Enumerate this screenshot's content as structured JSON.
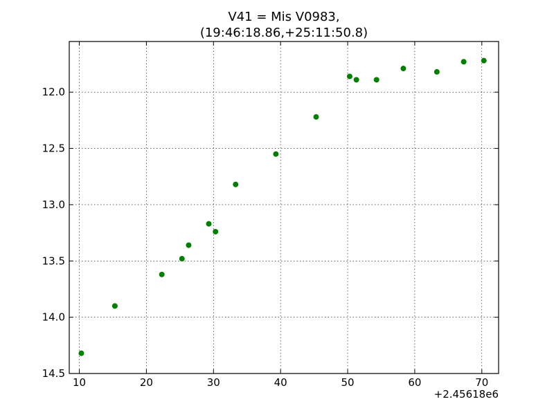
{
  "chart_data": {
    "type": "scatter",
    "title_lines": [
      "V41 = Mis V0983,",
      "(19:46:18.86,+25:11:50.8)"
    ],
    "xlabel": "",
    "ylabel": "",
    "x_offset_label": "+2.45618e6",
    "xlim": [
      8.5,
      72.5
    ],
    "ylim": [
      14.5,
      11.55
    ],
    "y_inverted": true,
    "x_ticks": [
      10,
      20,
      30,
      40,
      50,
      60,
      70
    ],
    "y_ticks": [
      12.0,
      12.5,
      13.0,
      13.5,
      14.0,
      14.5
    ],
    "x_tick_labels": [
      "10",
      "20",
      "30",
      "40",
      "50",
      "60",
      "70"
    ],
    "y_tick_labels": [
      "12.0",
      "12.5",
      "13.0",
      "13.5",
      "14.0",
      "14.5"
    ],
    "grid": true,
    "marker_color": "#007f00",
    "x": [
      10.3,
      15.3,
      22.3,
      25.3,
      26.3,
      29.3,
      30.3,
      33.3,
      39.3,
      45.3,
      50.3,
      51.3,
      54.3,
      58.3,
      63.3,
      67.3,
      70.3
    ],
    "y": [
      14.32,
      13.9,
      13.62,
      13.48,
      13.36,
      13.17,
      13.24,
      12.82,
      12.55,
      12.22,
      11.86,
      11.89,
      11.89,
      11.79,
      11.82,
      11.73,
      11.72
    ]
  }
}
